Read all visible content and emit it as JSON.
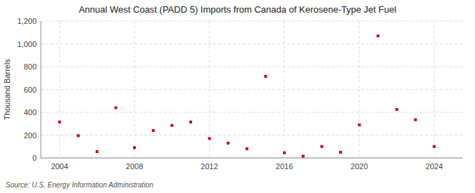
{
  "chart_data": {
    "type": "scatter",
    "title": "Annual West Coast (PADD 5) Imports from Canada of Kerosene-Type Jet Fuel",
    "ylabel": "Thousand Barrels",
    "source": "Source: U.S. Energy Information Administration",
    "x": [
      2004,
      2005,
      2006,
      2007,
      2008,
      2009,
      2010,
      2011,
      2012,
      2013,
      2014,
      2015,
      2016,
      2017,
      2018,
      2019,
      2020,
      2021,
      2022,
      2023,
      2024
    ],
    "values": [
      315,
      195,
      55,
      440,
      90,
      240,
      285,
      315,
      170,
      130,
      80,
      715,
      45,
      15,
      100,
      50,
      290,
      1070,
      425,
      335,
      100
    ],
    "color": "#cc0000",
    "marker": "square",
    "xlim": [
      2003.0,
      2025.5
    ],
    "ylim": [
      0,
      1200
    ],
    "xticks": [
      2004,
      2008,
      2012,
      2016,
      2020,
      2024
    ],
    "yticks": [
      0,
      200,
      400,
      600,
      800,
      {
        "value": 1000,
        "label": "1,000"
      },
      {
        "value": 1200,
        "label": "1,200"
      }
    ],
    "grid": true
  }
}
